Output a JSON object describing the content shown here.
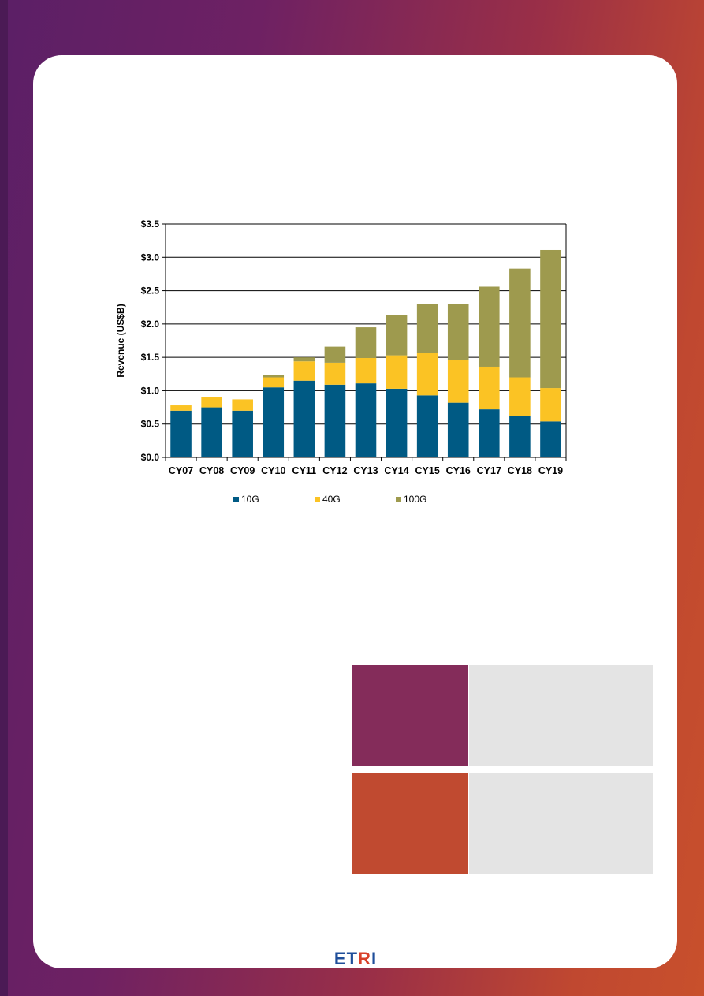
{
  "chart_data": {
    "type": "bar",
    "stacked": true,
    "title": "",
    "xlabel": "",
    "ylabel": "Revenue (US$B)",
    "ylim": [
      0,
      3.5
    ],
    "yticks": [
      "$0.0",
      "$0.5",
      "$1.0",
      "$1.5",
      "$2.0",
      "$2.5",
      "$3.0",
      "$3.5"
    ],
    "ytick_values": [
      0,
      0.5,
      1.0,
      1.5,
      2.0,
      2.5,
      3.0,
      3.5
    ],
    "categories": [
      "CY07",
      "CY08",
      "CY09",
      "CY10",
      "CY11",
      "CY12",
      "CY13",
      "CY14",
      "CY15",
      "CY16",
      "CY17",
      "CY18",
      "CY19"
    ],
    "series": [
      {
        "name": "10G",
        "color": "#005a84",
        "values": [
          0.7,
          0.75,
          0.7,
          1.05,
          1.15,
          1.09,
          1.11,
          1.03,
          0.93,
          0.82,
          0.72,
          0.62,
          0.54
        ]
      },
      {
        "name": "40G",
        "color": "#fbc324",
        "values": [
          0.08,
          0.16,
          0.17,
          0.15,
          0.29,
          0.33,
          0.38,
          0.5,
          0.64,
          0.64,
          0.64,
          0.58,
          0.5
        ]
      },
      {
        "name": "100G",
        "color": "#9e9a4e",
        "values": [
          0.0,
          0.0,
          0.0,
          0.03,
          0.06,
          0.24,
          0.46,
          0.61,
          0.73,
          0.84,
          1.2,
          1.63,
          2.07
        ]
      }
    ],
    "legend_position": "bottom",
    "grid": true
  },
  "logo": {
    "text_part1": "ET",
    "text_part2": "R",
    "text_part3": "I"
  },
  "colors": {
    "tile_purple": "#842c5a",
    "tile_orange": "#c04a30",
    "tile_grey": "#e4e4e4"
  }
}
